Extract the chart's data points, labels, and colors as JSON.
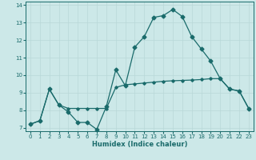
{
  "title": "",
  "xlabel": "Humidex (Indice chaleur)",
  "ylabel": "",
  "bg_color": "#cce8e8",
  "line_color": "#1a6b6b",
  "grid_color": "#b8d8d8",
  "xlim": [
    -0.5,
    23.5
  ],
  "ylim": [
    6.8,
    14.2
  ],
  "yticks": [
    7,
    8,
    9,
    10,
    11,
    12,
    13,
    14
  ],
  "xticks": [
    0,
    1,
    2,
    3,
    4,
    5,
    6,
    7,
    8,
    9,
    10,
    11,
    12,
    13,
    14,
    15,
    16,
    17,
    18,
    19,
    20,
    21,
    22,
    23
  ],
  "line1_x": [
    0,
    1,
    2,
    3,
    4,
    5,
    6,
    7,
    8,
    9,
    10,
    11,
    12,
    13,
    14,
    15,
    16,
    17,
    18,
    19,
    20,
    21,
    22,
    23
  ],
  "line1_y": [
    7.2,
    7.4,
    9.2,
    8.3,
    7.9,
    7.3,
    7.3,
    6.9,
    8.2,
    10.3,
    9.4,
    11.6,
    12.2,
    13.3,
    13.4,
    13.75,
    13.35,
    12.2,
    11.5,
    10.8,
    9.8,
    9.2,
    9.1,
    8.1
  ],
  "line2_x": [
    0,
    1,
    2,
    3,
    4,
    5,
    6,
    7,
    8,
    9,
    10,
    11,
    12,
    13,
    14,
    15,
    16,
    17,
    18,
    19,
    20,
    21,
    22,
    23
  ],
  "line2_y": [
    7.2,
    7.4,
    9.2,
    8.3,
    8.1,
    8.1,
    8.1,
    8.1,
    8.1,
    9.3,
    9.45,
    9.5,
    9.55,
    9.6,
    9.65,
    9.68,
    9.7,
    9.72,
    9.75,
    9.8,
    9.8,
    9.2,
    9.1,
    8.1
  ]
}
